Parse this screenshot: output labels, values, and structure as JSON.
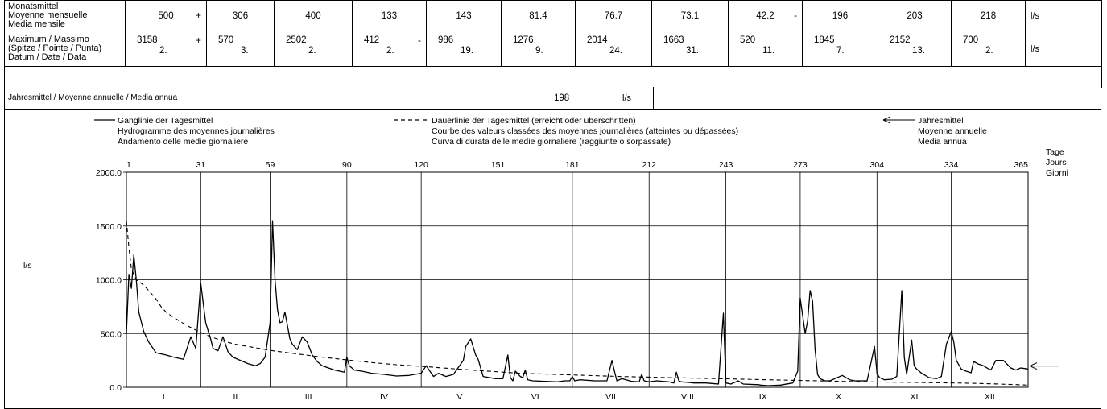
{
  "table": {
    "mean_label": [
      "Monatsmittel",
      "Moyenne mensuelle",
      "Media mensile"
    ],
    "max_label": [
      "Maximum / Massimo",
      "(Spitze / Pointe / Punta)",
      "Datum / Date / Data"
    ],
    "unit": "l/s",
    "means": [
      {
        "value": "500",
        "mark": "+"
      },
      {
        "value": "306",
        "mark": ""
      },
      {
        "value": "400",
        "mark": ""
      },
      {
        "value": "133",
        "mark": ""
      },
      {
        "value": "143",
        "mark": ""
      },
      {
        "value": "81.4",
        "mark": ""
      },
      {
        "value": "76.7",
        "mark": ""
      },
      {
        "value": "73.1",
        "mark": ""
      },
      {
        "value": "42.2",
        "mark": "-"
      },
      {
        "value": "196",
        "mark": ""
      },
      {
        "value": "203",
        "mark": ""
      },
      {
        "value": "218",
        "mark": ""
      }
    ],
    "maxima": [
      {
        "value": "3158",
        "date": "2.",
        "mark": "+"
      },
      {
        "value": "570",
        "date": "3.",
        "mark": ""
      },
      {
        "value": "2502",
        "date": "2.",
        "mark": ""
      },
      {
        "value": "412",
        "date": "2.",
        "mark": "-"
      },
      {
        "value": "986",
        "date": "19.",
        "mark": ""
      },
      {
        "value": "1276",
        "date": "9.",
        "mark": ""
      },
      {
        "value": "2014",
        "date": "24.",
        "mark": ""
      },
      {
        "value": "1663",
        "date": "31.",
        "mark": ""
      },
      {
        "value": "520",
        "date": "11.",
        "mark": ""
      },
      {
        "value": "1845",
        "date": "7.",
        "mark": ""
      },
      {
        "value": "2152",
        "date": "13.",
        "mark": ""
      },
      {
        "value": "700",
        "date": "2.",
        "mark": ""
      }
    ]
  },
  "annual": {
    "label": "Jahresmittel / Moyenne annuelle / Media annua",
    "value": "198",
    "unit": "l/s"
  },
  "legend": {
    "line1": [
      "Ganglinie der Tagesmittel",
      "Hydrogramme des moyennes journalières",
      "Andamento delle medie giornaliere"
    ],
    "line2": [
      "Dauerlinie der Tagesmittel (erreicht oder überschritten)",
      "Courbe des valeurs classées des moyennes journalières (atteintes ou dépassées)",
      "Curva di durata delle medie giornaliere (raggiunte o sorpassate)"
    ],
    "line3": [
      "Jahresmittel",
      "Moyenne annuelle",
      "Media annua"
    ]
  },
  "chart_data": {
    "type": "line",
    "ylabel": "l/s",
    "xlabel": [
      "Tage",
      "Jours",
      "Giorni"
    ],
    "ylim": [
      0,
      2000
    ],
    "xlim": [
      1,
      365
    ],
    "y_ticks": [
      "2000.0",
      "1500.0",
      "1000.0",
      "500.0",
      "0.0"
    ],
    "y_tick_values": [
      2000,
      1500,
      1000,
      500,
      0
    ],
    "day_ticks": [
      1,
      31,
      59,
      90,
      120,
      151,
      181,
      212,
      243,
      273,
      304,
      334,
      365
    ],
    "month_labels": [
      "I",
      "II",
      "III",
      "IV",
      "V",
      "VI",
      "VII",
      "VIII",
      "IX",
      "X",
      "XI",
      "XII"
    ],
    "annual_mean": 198,
    "grid": true,
    "series": [
      {
        "name": "Ganglinie der Tagesmittel",
        "style": "solid",
        "x": [
          1,
          2,
          3,
          4,
          5,
          6,
          8,
          10,
          13,
          17,
          20,
          24,
          27,
          29,
          31,
          33,
          35,
          36,
          38,
          40,
          42,
          44,
          47,
          50,
          53,
          55,
          57,
          59,
          60,
          61,
          62,
          63,
          64,
          65,
          67,
          68,
          70,
          72,
          74,
          76,
          78,
          80,
          85,
          89,
          90,
          91,
          93,
          96,
          100,
          105,
          110,
          115,
          120,
          122,
          125,
          127,
          130,
          133,
          137,
          138,
          140,
          142,
          143,
          145,
          150,
          153,
          155,
          156,
          157,
          158,
          160,
          161,
          162,
          163,
          165,
          170,
          175,
          178,
          180,
          181,
          182,
          184,
          190,
          195,
          197,
          198,
          199,
          201,
          205,
          208,
          209,
          210,
          212,
          215,
          220,
          222,
          223,
          224,
          225,
          228,
          230,
          235,
          240,
          242,
          243,
          244,
          245,
          248,
          250,
          255,
          256,
          257,
          260,
          265,
          270,
          272,
          273,
          275,
          276,
          277,
          278,
          279,
          280,
          281,
          283,
          285,
          290,
          293,
          295,
          298,
          300,
          303,
          304,
          305,
          306,
          307,
          310,
          312,
          314,
          315,
          316,
          318,
          319,
          320,
          322,
          325,
          328,
          330,
          332,
          333,
          334,
          335,
          336,
          338,
          340,
          342,
          343,
          345,
          347,
          348,
          350,
          352,
          355,
          358,
          360,
          362,
          365
        ],
        "y": [
          500,
          1050,
          920,
          1230,
          1000,
          700,
          520,
          420,
          320,
          300,
          280,
          260,
          470,
          360,
          970,
          600,
          450,
          360,
          340,
          470,
          330,
          280,
          250,
          220,
          200,
          220,
          280,
          600,
          1550,
          1000,
          720,
          600,
          610,
          700,
          450,
          400,
          350,
          470,
          420,
          300,
          240,
          200,
          160,
          140,
          280,
          200,
          160,
          150,
          130,
          120,
          105,
          110,
          130,
          200,
          100,
          130,
          100,
          120,
          250,
          380,
          450,
          300,
          260,
          100,
          80,
          80,
          300,
          90,
          60,
          150,
          100,
          90,
          160,
          70,
          60,
          55,
          50,
          60,
          60,
          100,
          60,
          70,
          60,
          60,
          250,
          150,
          60,
          80,
          55,
          50,
          120,
          60,
          50,
          60,
          50,
          40,
          140,
          60,
          50,
          45,
          40,
          40,
          30,
          690,
          40,
          35,
          30,
          60,
          30,
          25,
          25,
          20,
          15,
          20,
          40,
          150,
          830,
          500,
          620,
          900,
          800,
          350,
          120,
          80,
          60,
          60,
          110,
          70,
          60,
          60,
          60,
          380,
          130,
          90,
          80,
          70,
          75,
          100,
          900,
          280,
          120,
          440,
          200,
          170,
          130,
          90,
          80,
          100,
          400,
          460,
          520,
          420,
          250,
          170,
          150,
          135,
          240,
          215,
          200,
          185,
          160,
          250,
          250,
          180,
          160,
          180,
          170
        ]
      },
      {
        "name": "Dauerlinie der Tagesmittel (erreicht oder überschritten)",
        "style": "dashed",
        "x": [
          1,
          2,
          3,
          5,
          8,
          10,
          13,
          15,
          17,
          20,
          25,
          30,
          35,
          40,
          45,
          50,
          60,
          70,
          80,
          90,
          100,
          110,
          120,
          140,
          160,
          180,
          200,
          220,
          240,
          260,
          280,
          300,
          320,
          340,
          350,
          360,
          365
        ],
        "y": [
          1550,
          1300,
          1100,
          1000,
          950,
          900,
          820,
          750,
          700,
          650,
          580,
          520,
          470,
          430,
          400,
          380,
          340,
          310,
          280,
          255,
          230,
          210,
          195,
          160,
          130,
          115,
          100,
          90,
          80,
          70,
          60,
          50,
          45,
          38,
          32,
          25,
          20
        ]
      }
    ]
  }
}
